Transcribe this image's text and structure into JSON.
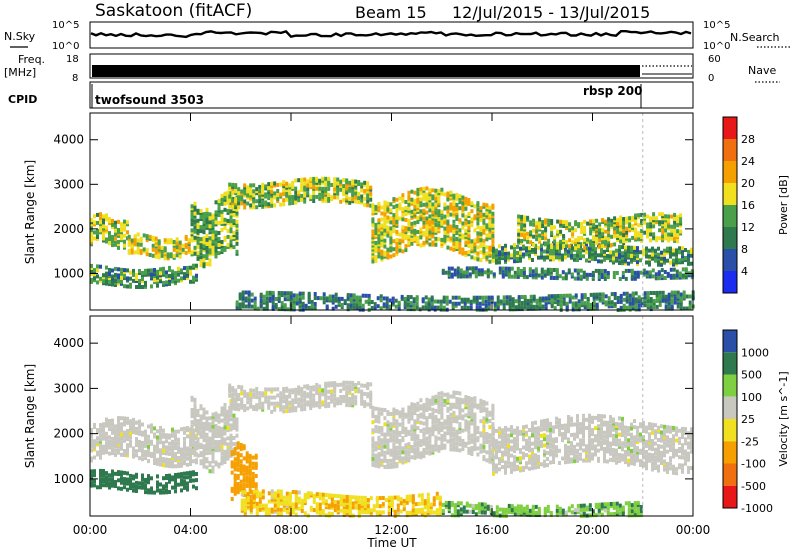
{
  "header": {
    "title": "Saskatoon (fitACF)",
    "beam": "Beam 15",
    "date_range": "12/Jul/2015 - 13/Jul/2015"
  },
  "top_panels": {
    "nsky_label": "N.Sky",
    "nsearch_label": "N.Search",
    "nsky_ticks": [
      "10^5",
      "10^0"
    ],
    "nsearch_ticks": [
      "10^5",
      "10^0"
    ],
    "freq_label": "Freq.",
    "freq_unit": "[MHz]",
    "freq_ticks": [
      "18",
      "8"
    ],
    "nave_label": "Nave",
    "nave_ticks": [
      "60",
      "0"
    ],
    "cpid_label": "CPID",
    "cpid_segments": [
      {
        "name": "twofsound 3503",
        "start_hour": 0
      },
      {
        "name": "rbsp 200",
        "start_hour": 22
      }
    ]
  },
  "chart_data": [
    {
      "type": "heatmap",
      "title": "",
      "xlabel": "",
      "ylabel": "Slant Range [km]",
      "xlim_hours": [
        0,
        24
      ],
      "ylim": [
        180,
        4600
      ],
      "x_ticks": [
        "00:00",
        "04:00",
        "08:00",
        "12:00",
        "16:00",
        "20:00",
        "00:00"
      ],
      "y_ticks": [
        1000,
        2000,
        3000,
        4000
      ],
      "colorbar": {
        "label": "Power [dB]",
        "ticks": [
          28,
          24,
          20,
          16,
          12,
          8,
          4
        ],
        "colors": [
          "#1a2cf0",
          "#2a4fa8",
          "#2e7a4e",
          "#4aa04a",
          "#f0e020",
          "#f5a000",
          "#f07010",
          "#e81818"
        ]
      },
      "bands_description": "echo bands as (start_hour, end_hour, range_km_start, range_km_end, typical dB)",
      "bands": [
        {
          "t": [
            0.0,
            1.5
          ],
          "r": [
            1700,
            2300
          ],
          "db": 14
        },
        {
          "t": [
            1.5,
            4.0
          ],
          "r": [
            1450,
            1900
          ],
          "db": 16
        },
        {
          "t": [
            0.0,
            4.2
          ],
          "r": [
            800,
            1200
          ],
          "db": 10
        },
        {
          "t": [
            4.0,
            5.8
          ],
          "r": [
            1400,
            2700
          ],
          "db": 12
        },
        {
          "t": [
            5.5,
            11.2
          ],
          "r": [
            2600,
            3100
          ],
          "db": 14
        },
        {
          "t": [
            11.2,
            16.0
          ],
          "r": [
            1500,
            2800
          ],
          "db": 16
        },
        {
          "t": [
            16.0,
            24.0
          ],
          "r": [
            1300,
            1700
          ],
          "db": 10
        },
        {
          "t": [
            14.0,
            24.0
          ],
          "r": [
            950,
            1150
          ],
          "db": 8
        },
        {
          "t": [
            5.8,
            24.0
          ],
          "r": [
            200,
            600
          ],
          "db": 8
        },
        {
          "t": [
            17.0,
            23.5
          ],
          "r": [
            1700,
            2300
          ],
          "db": 14
        }
      ]
    },
    {
      "type": "heatmap",
      "title": "",
      "xlabel": "Time UT",
      "ylabel": "Slant Range [km]",
      "xlim_hours": [
        0,
        24
      ],
      "ylim": [
        180,
        4600
      ],
      "x_ticks": [
        "00:00",
        "04:00",
        "08:00",
        "12:00",
        "16:00",
        "20:00",
        "00:00"
      ],
      "y_ticks": [
        1000,
        2000,
        3000,
        4000
      ],
      "colorbar": {
        "label": "Velocity [m s^-1]",
        "ticks": [
          1000,
          500,
          100,
          25,
          -25,
          -100,
          -500,
          -1000
        ],
        "colors": [
          "#e81818",
          "#f07010",
          "#f5a000",
          "#f0e020",
          "#c8c8c0",
          "#7fd040",
          "#2e7a4e",
          "#2a4fa8"
        ]
      },
      "bands_description": "echo bands as (start_hour, end_hour, range_km_start, range_km_end, typical velocity)",
      "bands": [
        {
          "t": [
            0.0,
            4.2
          ],
          "r": [
            1450,
            2300
          ],
          "v": 0
        },
        {
          "t": [
            0.0,
            4.2
          ],
          "r": [
            800,
            1200
          ],
          "v": 200
        },
        {
          "t": [
            4.0,
            5.8
          ],
          "r": [
            1400,
            2700
          ],
          "v": 0
        },
        {
          "t": [
            5.5,
            11.2
          ],
          "r": [
            2600,
            3100
          ],
          "v": 0
        },
        {
          "t": [
            11.2,
            16.0
          ],
          "r": [
            1500,
            2800
          ],
          "v": 0
        },
        {
          "t": [
            16.0,
            24.0
          ],
          "r": [
            1300,
            2300
          ],
          "v": 0
        },
        {
          "t": [
            5.6,
            6.6
          ],
          "r": [
            600,
            1700
          ],
          "v": -300
        },
        {
          "t": [
            6.0,
            14.0
          ],
          "r": [
            200,
            700
          ],
          "v": -80
        },
        {
          "t": [
            14.0,
            22.0
          ],
          "r": [
            200,
            500
          ],
          "v": 80
        }
      ]
    }
  ]
}
